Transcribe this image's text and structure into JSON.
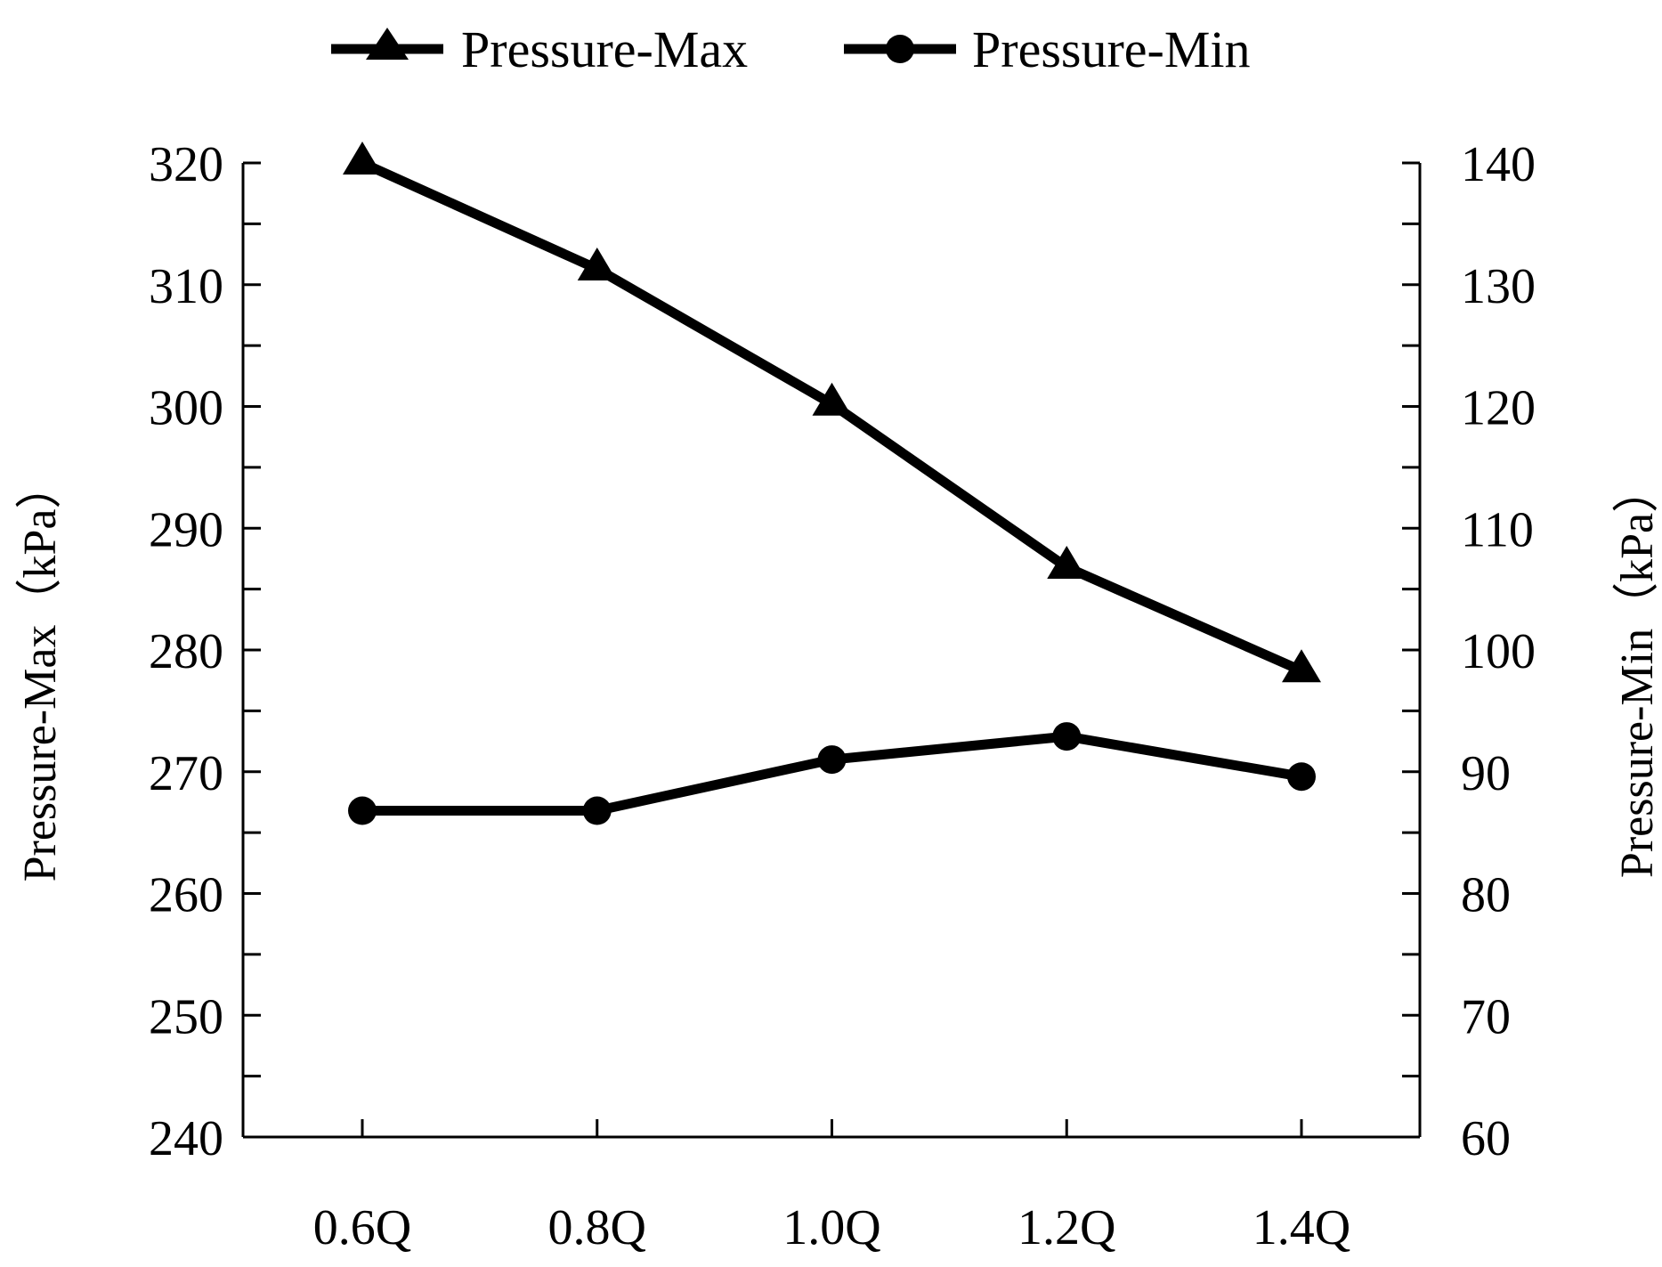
{
  "chart_data": {
    "type": "line",
    "title": "",
    "categories": [
      "0.6Q",
      "0.8Q",
      "1.0Q",
      "1.2Q",
      "1.4Q"
    ],
    "xlabel": "",
    "ylabel_left": "Pressure-Max（kPa）",
    "ylabel_right": "Pressure-Min（kPa）",
    "ylim_left": [
      240,
      320
    ],
    "ylim_right": [
      60,
      140
    ],
    "yticks_left": [
      240,
      250,
      260,
      270,
      280,
      290,
      300,
      310,
      320
    ],
    "yticks_right": [
      60,
      70,
      80,
      90,
      100,
      110,
      120,
      130,
      140
    ],
    "legend_position": "top-center",
    "grid": false,
    "series": [
      {
        "name": "Pressure-Max",
        "axis": "left",
        "marker": "triangle",
        "values": [
          320,
          311.3,
          300.2,
          286.8,
          278.3
        ]
      },
      {
        "name": "Pressure-Min",
        "axis": "right",
        "marker": "circle",
        "values": [
          86.8,
          86.8,
          91.0,
          92.9,
          89.6
        ]
      }
    ],
    "colors": {
      "line": "#000000",
      "axis": "#000000",
      "background": "#ffffff"
    }
  }
}
